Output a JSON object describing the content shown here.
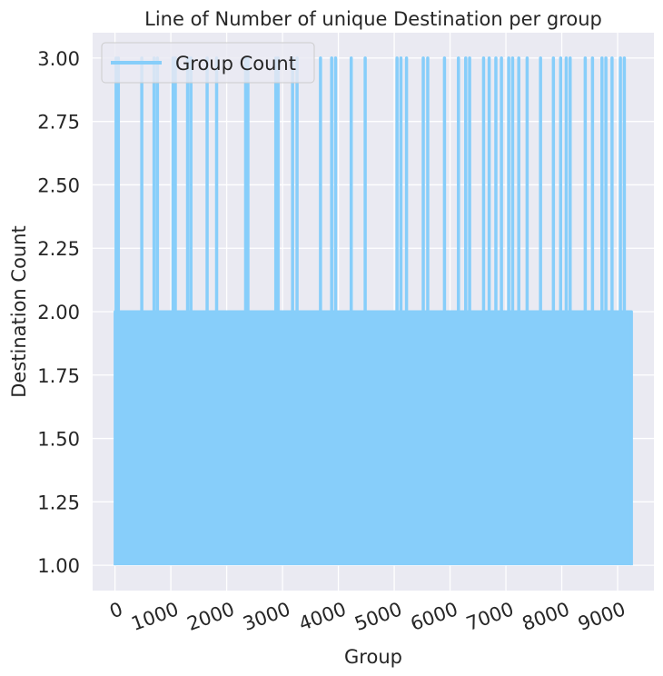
{
  "chart_data": {
    "type": "line",
    "title": "Line of Number of unique Destination per group",
    "xlabel": "Group",
    "ylabel": "Destination Count",
    "xlim": [
      -400,
      9650
    ],
    "ylim": [
      0.9,
      3.1
    ],
    "grid": true,
    "legend": {
      "placement": "top-left",
      "entries": [
        "Group Count"
      ]
    },
    "x_ticks": [
      0,
      1000,
      2000,
      3000,
      4000,
      5000,
      6000,
      7000,
      8000,
      9000
    ],
    "x_tick_labels": [
      "0",
      "1000",
      "2000",
      "3000",
      "4000",
      "5000",
      "6000",
      "7000",
      "8000",
      "9000"
    ],
    "y_ticks": [
      1.0,
      1.25,
      1.5,
      1.75,
      2.0,
      2.25,
      2.5,
      2.75,
      3.0
    ],
    "y_tick_labels": [
      "1.00",
      "1.25",
      "1.50",
      "1.75",
      "2.00",
      "2.25",
      "2.50",
      "2.75",
      "3.00"
    ],
    "x_range_of_data": [
      0,
      9250
    ],
    "series": [
      {
        "name": "Group Count",
        "color": "#87cefa",
        "description_values": "values oscillate densely between 1 and 2 across all groups, with occasional spikes to 3",
        "spike_to_3_at_group": [
          20,
          60,
          480,
          700,
          760,
          1040,
          1080,
          1300,
          1360,
          1650,
          1820,
          2340,
          2380,
          2880,
          2920,
          3180,
          3260,
          3680,
          3880,
          3950,
          4230,
          4480,
          5050,
          5120,
          5220,
          5520,
          5600,
          5900,
          6150,
          6280,
          6350,
          6600,
          6700,
          6820,
          6920,
          7050,
          7120,
          7230,
          7380,
          7620,
          7850,
          7980,
          8080,
          8150,
          8420,
          8550,
          8720,
          8790,
          8900,
          9050,
          9120
        ]
      }
    ]
  }
}
